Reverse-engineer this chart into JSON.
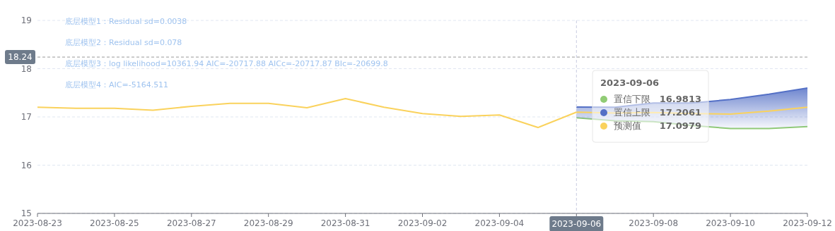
{
  "chart_data": {
    "type": "line",
    "x": [
      "2023-08-23",
      "2023-08-24",
      "2023-08-25",
      "2023-08-26",
      "2023-08-27",
      "2023-08-28",
      "2023-08-29",
      "2023-08-30",
      "2023-08-31",
      "2023-09-01",
      "2023-09-02",
      "2023-09-03",
      "2023-09-04",
      "2023-09-05",
      "2023-09-06",
      "2023-09-07",
      "2023-09-08",
      "2023-09-09",
      "2023-09-10",
      "2023-09-11",
      "2023-09-12"
    ],
    "series": [
      {
        "name": "置信下限",
        "color": "#91cc75",
        "values": [
          null,
          null,
          null,
          null,
          null,
          null,
          null,
          null,
          null,
          null,
          null,
          null,
          null,
          null,
          16.9813,
          16.92,
          16.9,
          16.82,
          16.76,
          16.76,
          16.8
        ]
      },
      {
        "name": "置信上限",
        "type": "area",
        "color": "#5470c6",
        "values": [
          null,
          null,
          null,
          null,
          null,
          null,
          null,
          null,
          null,
          null,
          null,
          null,
          null,
          null,
          17.2061,
          17.2,
          17.29,
          17.29,
          17.36,
          17.47,
          17.6
        ]
      },
      {
        "name": "预测值",
        "color": "#fad25c",
        "values": [
          17.2,
          17.18,
          17.18,
          17.14,
          17.22,
          17.28,
          17.28,
          17.19,
          17.38,
          17.2,
          17.07,
          17.01,
          17.04,
          16.78,
          17.0979,
          17.08,
          17.09,
          17.07,
          17.06,
          17.12,
          17.2
        ]
      }
    ],
    "xlim": [
      "2023-08-23",
      "2023-09-12"
    ],
    "xticks": [
      "2023-08-23",
      "2023-08-25",
      "2023-08-27",
      "2023-08-29",
      "2023-08-31",
      "2023-09-02",
      "2023-09-04",
      {
        "value": "2023-09-06",
        "label": null
      },
      "2023-09-08",
      "2023-09-10",
      "2023-09-12"
    ],
    "ylim": [
      15,
      19
    ],
    "yticks": [
      15,
      16,
      17,
      18,
      19
    ],
    "grid": "y",
    "legend": "top right",
    "marker": "none",
    "ref_lines": [
      {
        "axis": "y",
        "value": 18.24,
        "label": "18.24",
        "color": "#999999",
        "line_style": "dashed"
      },
      {
        "axis": "x",
        "value": "2023-09-06",
        "label": "2023-09-06",
        "color": "#c8cbe0",
        "line_style": "dashed"
      }
    ],
    "annotations": [
      "底层模型1：Residual sd=0.0038",
      "底层模型2：Residual sd=0.078",
      "底层模型3：log likelihood=10361.94 AIC=-20717.88 AICc=-20717.87 BIc=-20699.8",
      "底层模型4：AIC=-5164.511",
      "2023-09-06",
      "16.9813",
      "17.2061",
      "17.0979"
    ]
  }
}
